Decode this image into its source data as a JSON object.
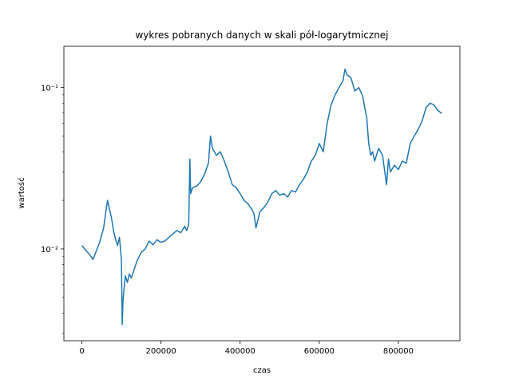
{
  "chart_data": {
    "type": "line",
    "title": "wykres pobranych danych w skali pół-logarytmicznej",
    "xlabel": "czas",
    "ylabel": "wartość",
    "yscale": "log",
    "xlim": [
      -45500,
      955500
    ],
    "ylim": [
      0.0027,
      0.18
    ],
    "grid": false,
    "x_ticks": [
      0,
      200000,
      400000,
      600000,
      800000
    ],
    "x_tick_labels": [
      "0",
      "200000",
      "400000",
      "600000",
      "800000"
    ],
    "y_ticks": [
      0.01,
      0.1
    ],
    "y_tick_labels": [
      "10⁻²",
      "10⁻¹"
    ],
    "series": [
      {
        "color": "#1f77b4",
        "x": [
          0,
          10000,
          20000,
          28000,
          35000,
          45000,
          55000,
          62000,
          65000,
          70000,
          75000,
          80000,
          85000,
          90000,
          95000,
          100000,
          102000,
          104000,
          106000,
          110000,
          115000,
          120000,
          125000,
          130000,
          140000,
          150000,
          160000,
          170000,
          180000,
          190000,
          200000,
          210000,
          220000,
          230000,
          240000,
          250000,
          260000,
          265000,
          270000,
          273000,
          275000,
          280000,
          290000,
          300000,
          310000,
          320000,
          325000,
          330000,
          340000,
          350000,
          360000,
          370000,
          380000,
          390000,
          400000,
          410000,
          420000,
          430000,
          435000,
          440000,
          450000,
          460000,
          470000,
          480000,
          490000,
          500000,
          510000,
          520000,
          530000,
          540000,
          550000,
          560000,
          570000,
          580000,
          590000,
          600000,
          610000,
          620000,
          630000,
          640000,
          650000,
          660000,
          665000,
          670000,
          680000,
          690000,
          700000,
          710000,
          715000,
          720000,
          725000,
          730000,
          735000,
          740000,
          750000,
          760000,
          770000,
          775000,
          780000,
          790000,
          800000,
          810000,
          820000,
          830000,
          840000,
          850000,
          860000,
          870000,
          880000,
          890000,
          900000,
          910000
        ],
        "y": [
          0.0105,
          0.0098,
          0.0092,
          0.0086,
          0.0095,
          0.011,
          0.0135,
          0.018,
          0.02,
          0.0175,
          0.0155,
          0.013,
          0.0115,
          0.0105,
          0.0118,
          0.0085,
          0.0034,
          0.0048,
          0.0055,
          0.0068,
          0.0062,
          0.007,
          0.0066,
          0.0072,
          0.0085,
          0.0095,
          0.01,
          0.0112,
          0.0106,
          0.0114,
          0.011,
          0.0112,
          0.0118,
          0.0124,
          0.013,
          0.0126,
          0.0138,
          0.013,
          0.0142,
          0.036,
          0.022,
          0.024,
          0.0245,
          0.026,
          0.029,
          0.034,
          0.05,
          0.042,
          0.038,
          0.04,
          0.035,
          0.03,
          0.025,
          0.024,
          0.022,
          0.02,
          0.019,
          0.0175,
          0.0165,
          0.0135,
          0.017,
          0.018,
          0.0195,
          0.022,
          0.023,
          0.0215,
          0.022,
          0.021,
          0.023,
          0.0225,
          0.025,
          0.027,
          0.03,
          0.035,
          0.038,
          0.045,
          0.04,
          0.06,
          0.078,
          0.09,
          0.1,
          0.11,
          0.13,
          0.12,
          0.115,
          0.095,
          0.1,
          0.088,
          0.075,
          0.065,
          0.045,
          0.038,
          0.04,
          0.035,
          0.042,
          0.038,
          0.025,
          0.036,
          0.03,
          0.033,
          0.031,
          0.035,
          0.034,
          0.045,
          0.05,
          0.055,
          0.062,
          0.075,
          0.08,
          0.078,
          0.072,
          0.069
        ]
      }
    ]
  }
}
